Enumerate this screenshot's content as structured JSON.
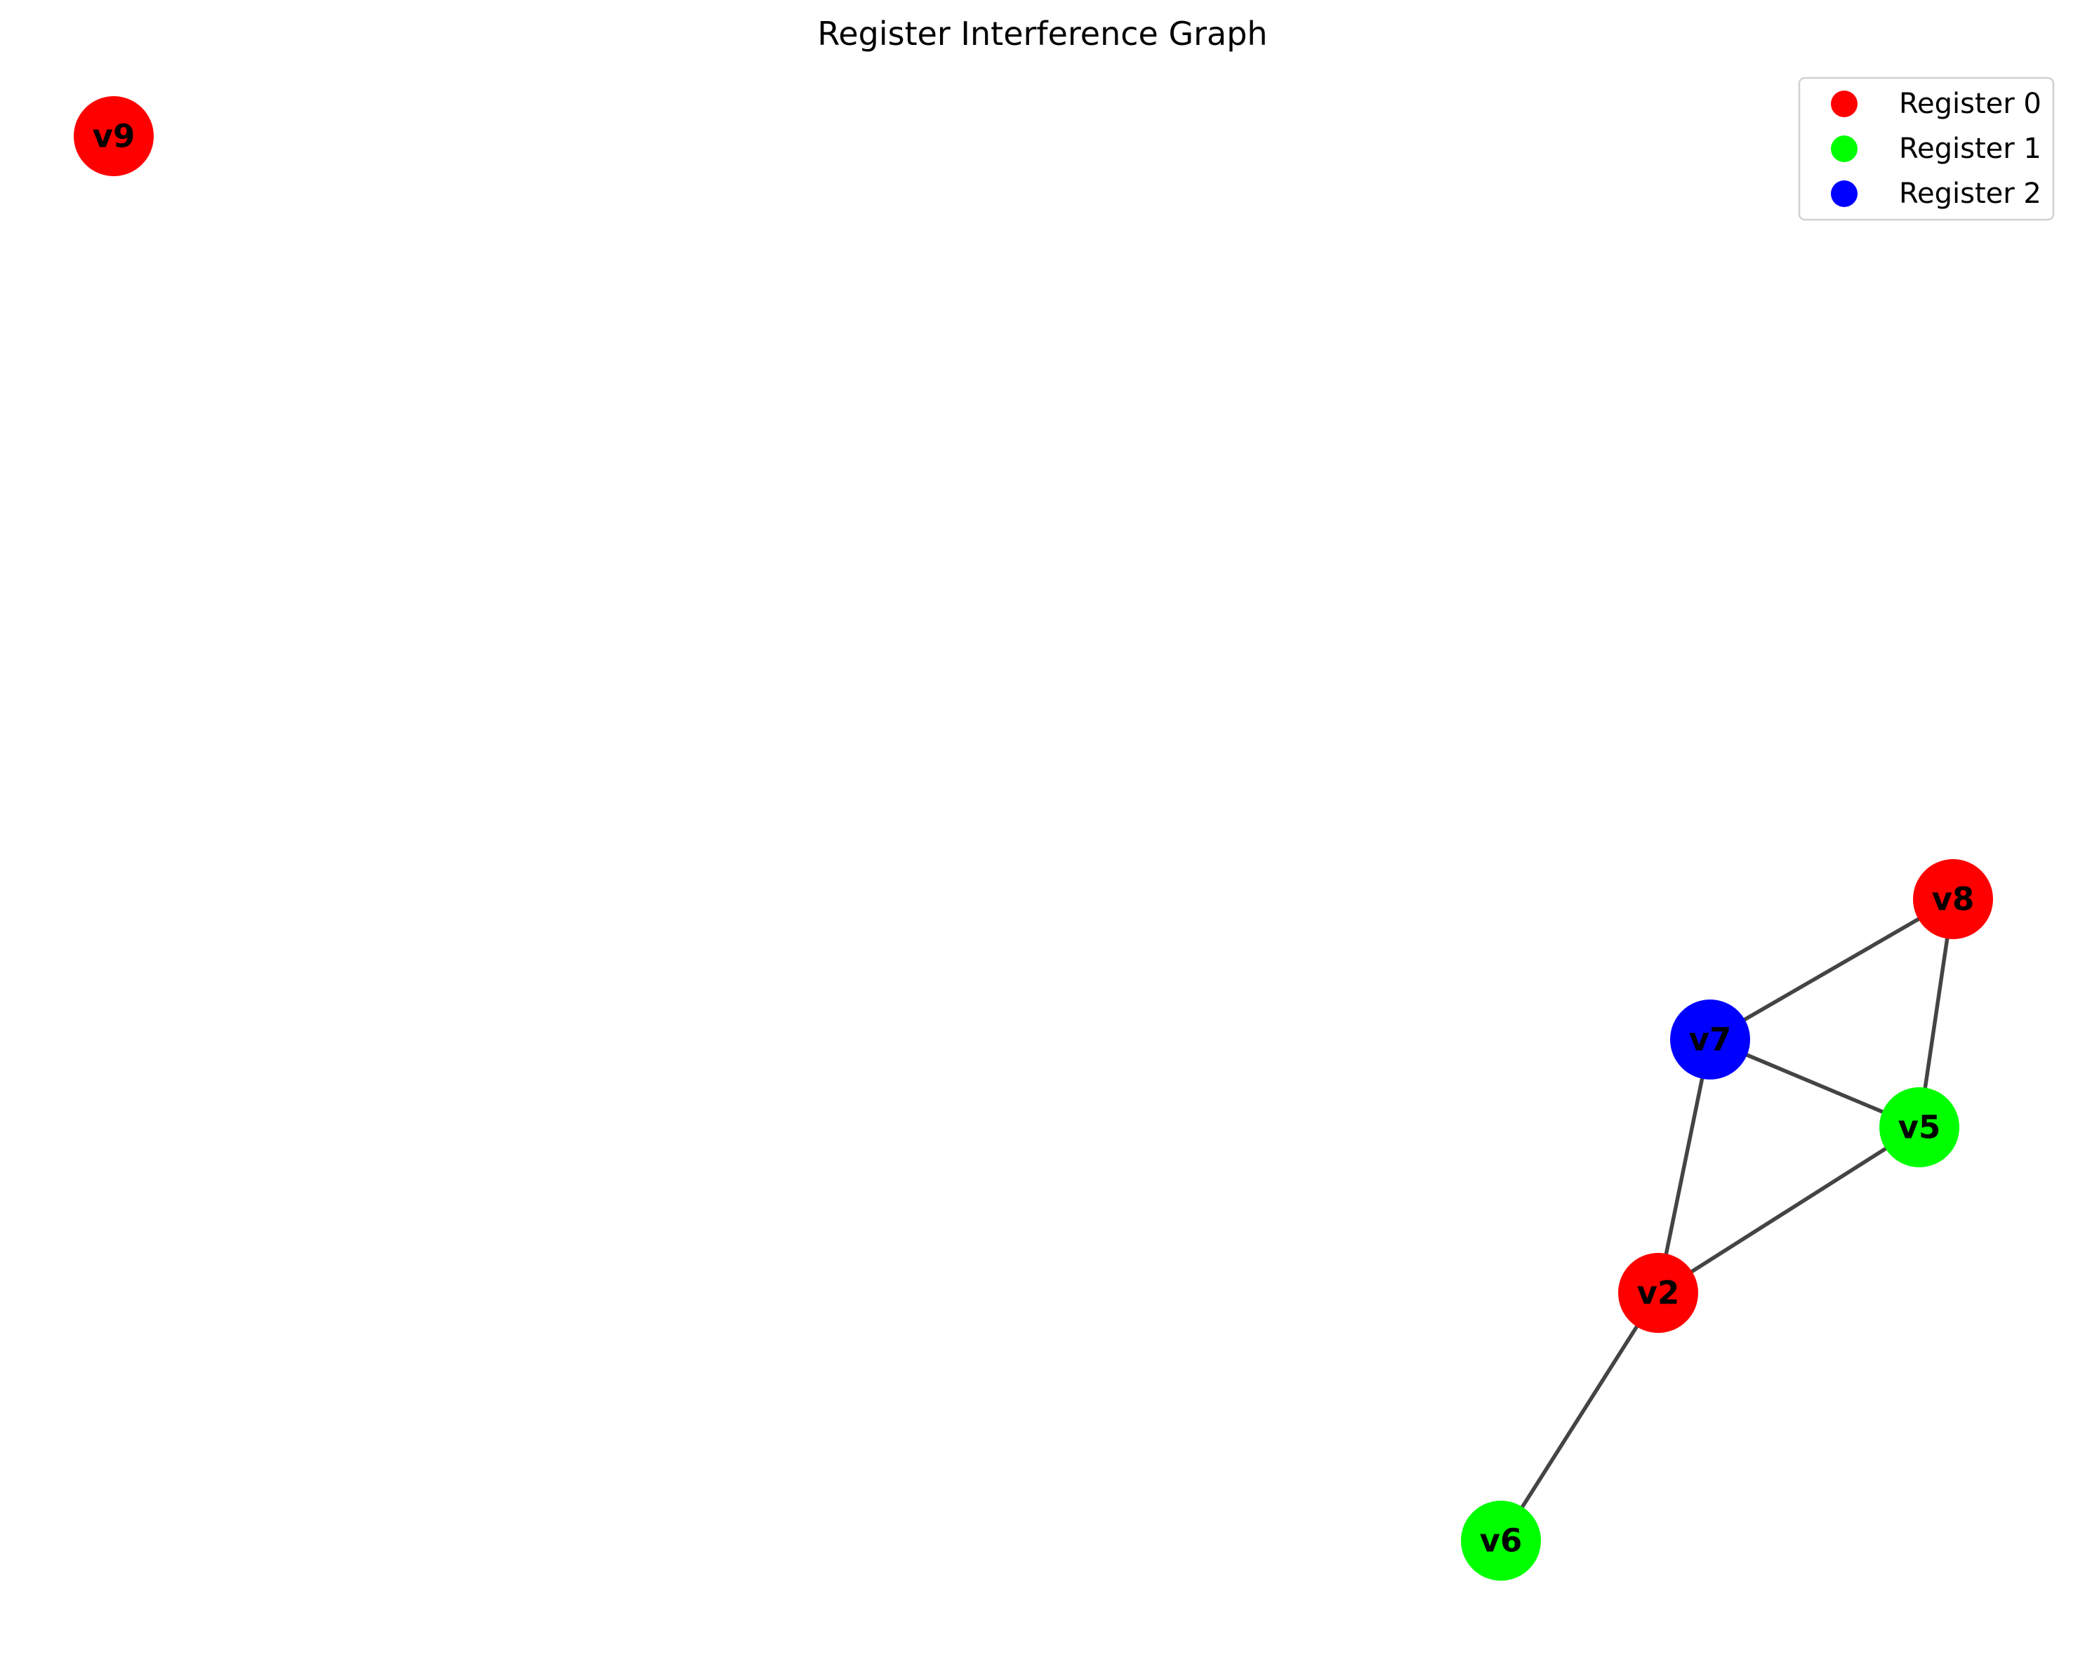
{
  "title": "Register Interference Graph",
  "registers": [
    {
      "label": "Register 0",
      "color": "#ff0000"
    },
    {
      "label": "Register 1",
      "color": "#00ff00"
    },
    {
      "label": "Register 2",
      "color": "#0000ff"
    }
  ],
  "nodes": [
    {
      "id": "v9",
      "label": "v9",
      "register": 0
    },
    {
      "id": "v8",
      "label": "v8",
      "register": 0
    },
    {
      "id": "v7",
      "label": "v7",
      "register": 2
    },
    {
      "id": "v5",
      "label": "v5",
      "register": 1
    },
    {
      "id": "v2",
      "label": "v2",
      "register": 0
    },
    {
      "id": "v6",
      "label": "v6",
      "register": 1
    }
  ],
  "edges": [
    [
      "v7",
      "v8"
    ],
    [
      "v8",
      "v5"
    ],
    [
      "v7",
      "v5"
    ],
    [
      "v7",
      "v2"
    ],
    [
      "v5",
      "v2"
    ],
    [
      "v2",
      "v6"
    ]
  ],
  "edge_color": "#444444",
  "legend_position": "top-right"
}
